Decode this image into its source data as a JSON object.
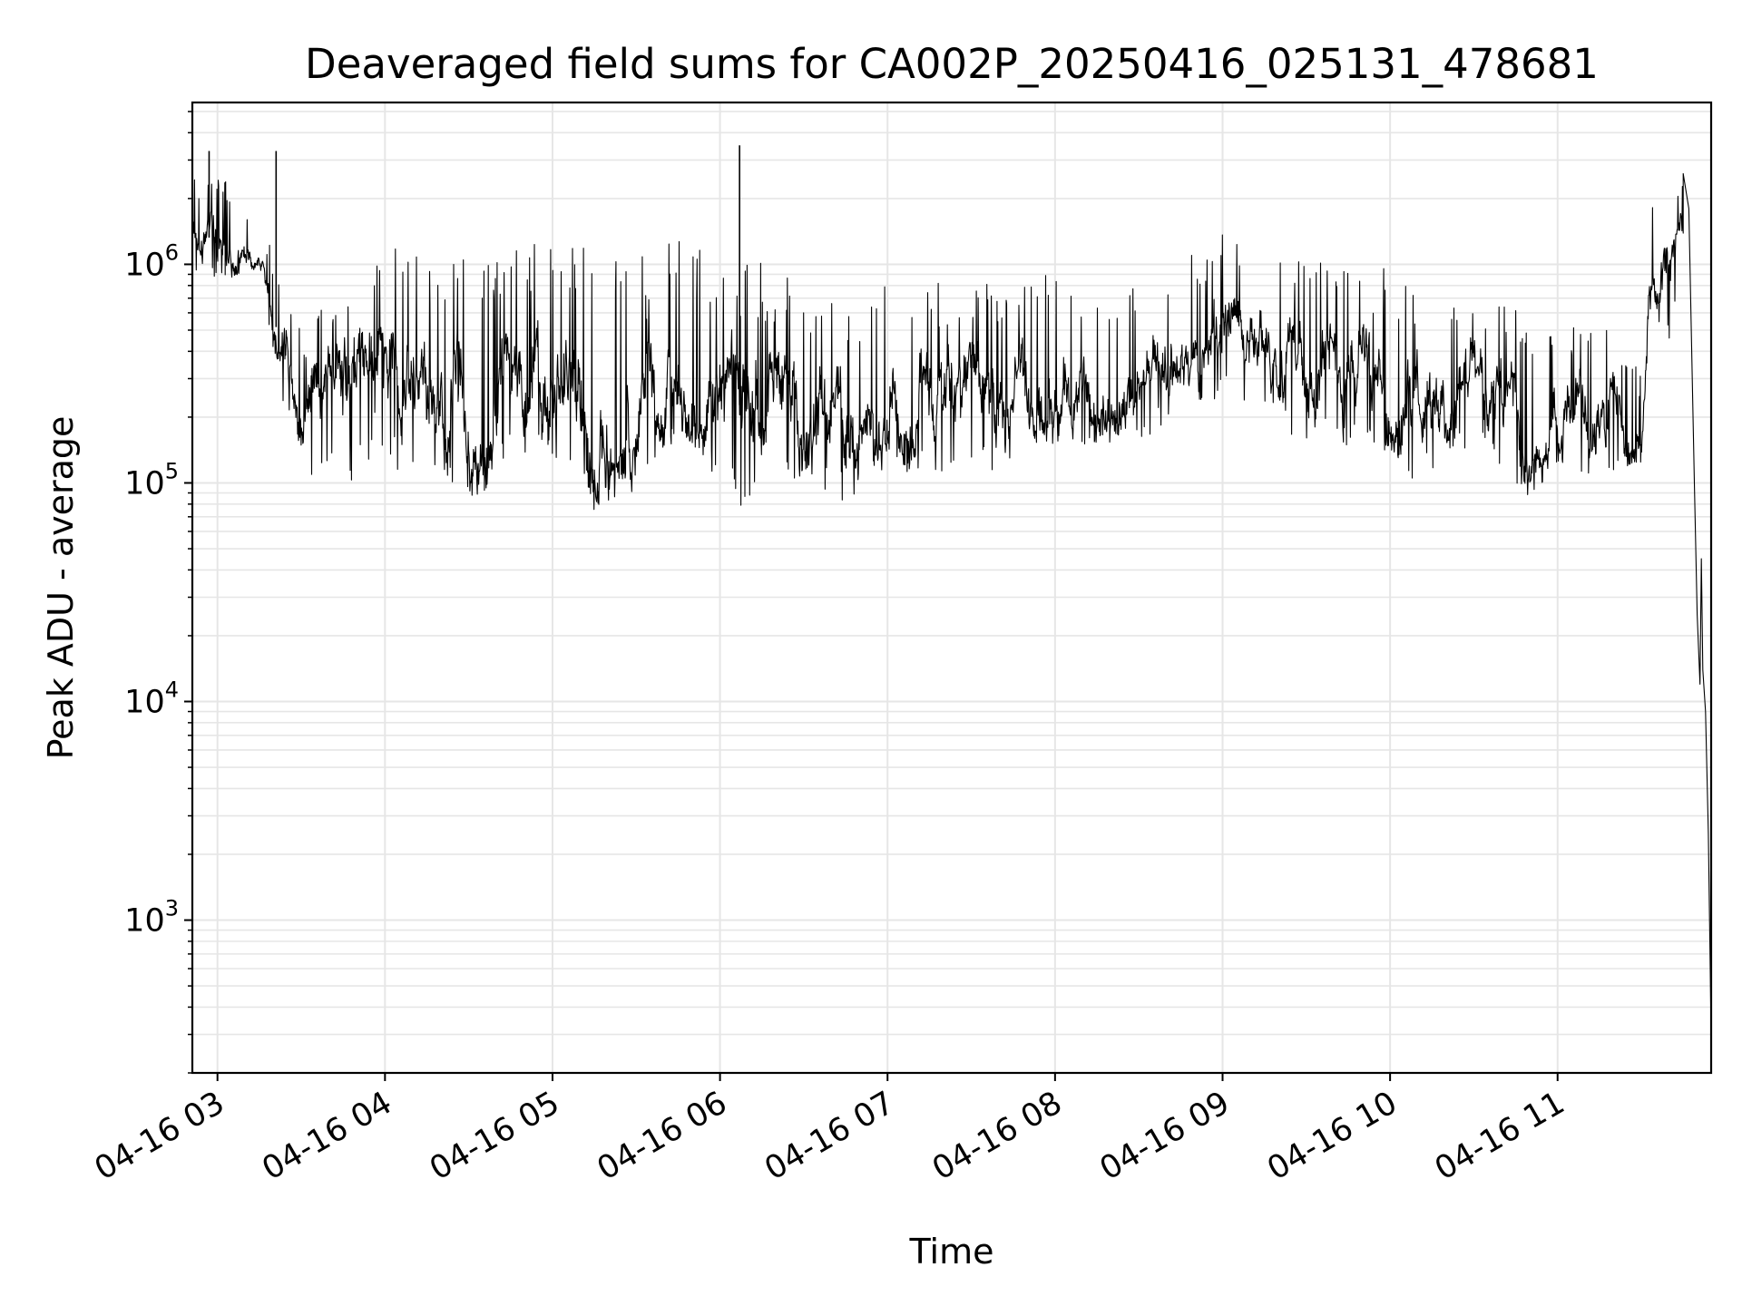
{
  "chart_data": {
    "type": "line",
    "title": "Deaveraged field sums for CA002P_20250416_025131_478681",
    "xlabel": "Time",
    "ylabel": "Peak ADU - average",
    "y_scale": "log",
    "ylim": [
      200,
      5500000
    ],
    "xlim": [
      "2025-04-16 02:51",
      "2025-04-16 11:55"
    ],
    "grid": true,
    "line_color": "#000000",
    "grid_color": "#e6e6e6",
    "x_ticks": [
      {
        "t": "2025-04-16 03:00",
        "label": "04-16 03"
      },
      {
        "t": "2025-04-16 04:00",
        "label": "04-16 04"
      },
      {
        "t": "2025-04-16 05:00",
        "label": "04-16 05"
      },
      {
        "t": "2025-04-16 06:00",
        "label": "04-16 06"
      },
      {
        "t": "2025-04-16 07:00",
        "label": "04-16 07"
      },
      {
        "t": "2025-04-16 08:00",
        "label": "04-16 08"
      },
      {
        "t": "2025-04-16 09:00",
        "label": "04-16 09"
      },
      {
        "t": "2025-04-16 10:00",
        "label": "04-16 10"
      },
      {
        "t": "2025-04-16 11:00",
        "label": "04-16 11"
      }
    ],
    "y_ticks": [
      {
        "value": 1000,
        "base": "10",
        "exp": "3"
      },
      {
        "value": 10000,
        "base": "10",
        "exp": "4"
      },
      {
        "value": 100000,
        "base": "10",
        "exp": "5"
      },
      {
        "value": 1000000,
        "base": "10",
        "exp": "6"
      }
    ],
    "series": [
      {
        "envelope": [
          {
            "t": "2025-04-16 02:51",
            "low": 900000,
            "high": 2500000
          },
          {
            "t": "2025-04-16 03:05",
            "low": 850000,
            "high": 2400000
          },
          {
            "t": "2025-04-16 03:15",
            "low": 900000,
            "high": 1300000
          },
          {
            "t": "2025-04-16 03:20",
            "low": 350000,
            "high": 1200000
          },
          {
            "t": "2025-04-16 03:30",
            "low": 110000,
            "high": 500000
          },
          {
            "t": "2025-04-16 03:45",
            "low": 95000,
            "high": 1100000
          },
          {
            "t": "2025-04-16 04:00",
            "low": 120000,
            "high": 1200000
          },
          {
            "t": "2025-04-16 04:15",
            "low": 100000,
            "high": 1150000
          },
          {
            "t": "2025-04-16 04:30",
            "low": 65000,
            "high": 1250000
          },
          {
            "t": "2025-04-16 04:45",
            "low": 120000,
            "high": 1300000
          },
          {
            "t": "2025-04-16 05:00",
            "low": 130000,
            "high": 1200000
          },
          {
            "t": "2025-04-16 05:15",
            "low": 65000,
            "high": 1300000
          },
          {
            "t": "2025-04-16 05:30",
            "low": 90000,
            "high": 1250000
          },
          {
            "t": "2025-04-16 05:45",
            "low": 140000,
            "high": 1300000
          },
          {
            "t": "2025-04-16 06:00",
            "low": 100000,
            "high": 1200000
          },
          {
            "t": "2025-04-16 06:10",
            "low": 70000,
            "high": 1100000
          },
          {
            "t": "2025-04-16 06:30",
            "low": 100000,
            "high": 800000
          },
          {
            "t": "2025-04-16 06:45",
            "low": 80000,
            "high": 700000
          },
          {
            "t": "2025-04-16 07:00",
            "low": 110000,
            "high": 800000
          },
          {
            "t": "2025-04-16 07:20",
            "low": 100000,
            "high": 850000
          },
          {
            "t": "2025-04-16 07:40",
            "low": 110000,
            "high": 900000
          },
          {
            "t": "2025-04-16 08:00",
            "low": 150000,
            "high": 950000
          },
          {
            "t": "2025-04-16 08:20",
            "low": 140000,
            "high": 800000
          },
          {
            "t": "2025-04-16 08:40",
            "low": 180000,
            "high": 1000000
          },
          {
            "t": "2025-04-16 09:00",
            "low": 250000,
            "high": 1400000
          },
          {
            "t": "2025-04-16 09:15",
            "low": 200000,
            "high": 1000000
          },
          {
            "t": "2025-04-16 09:30",
            "low": 150000,
            "high": 1100000
          },
          {
            "t": "2025-04-16 09:50",
            "low": 140000,
            "high": 1000000
          },
          {
            "t": "2025-04-16 10:10",
            "low": 100000,
            "high": 900000
          },
          {
            "t": "2025-04-16 10:30",
            "low": 150000,
            "high": 800000
          },
          {
            "t": "2025-04-16 10:50",
            "low": 80000,
            "high": 600000
          },
          {
            "t": "2025-04-16 11:00",
            "low": 110000,
            "high": 550000
          },
          {
            "t": "2025-04-16 11:20",
            "low": 100000,
            "high": 600000
          },
          {
            "t": "2025-04-16 11:30",
            "low": 120000,
            "high": 300000
          },
          {
            "t": "2025-04-16 11:33",
            "low": 500000,
            "high": 2500000
          },
          {
            "t": "2025-04-16 11:40",
            "low": 450000,
            "high": 2000000
          },
          {
            "t": "2025-04-16 11:45",
            "low": 1000000,
            "high": 2600000
          }
        ],
        "spikes": [
          {
            "t": "2025-04-16 02:57",
            "value": 3300000
          },
          {
            "t": "2025-04-16 03:21",
            "value": 3300000
          },
          {
            "t": "2025-04-16 06:07",
            "value": 3500000
          }
        ],
        "tail": [
          {
            "t": "2025-04-16 11:45",
            "value": 2600000
          },
          {
            "t": "2025-04-16 11:47",
            "value": 1800000
          },
          {
            "t": "2025-04-16 11:49",
            "value": 100000
          },
          {
            "t": "2025-04-16 11:50",
            "value": 25000
          },
          {
            "t": "2025-04-16 11:51",
            "value": 12000
          },
          {
            "t": "2025-04-16 11:51:30",
            "value": 45000
          },
          {
            "t": "2025-04-16 11:52",
            "value": 14000
          },
          {
            "t": "2025-04-16 11:53",
            "value": 9000
          },
          {
            "t": "2025-04-16 11:54",
            "value": 2500
          },
          {
            "t": "2025-04-16 11:55",
            "value": 300
          }
        ]
      }
    ]
  }
}
